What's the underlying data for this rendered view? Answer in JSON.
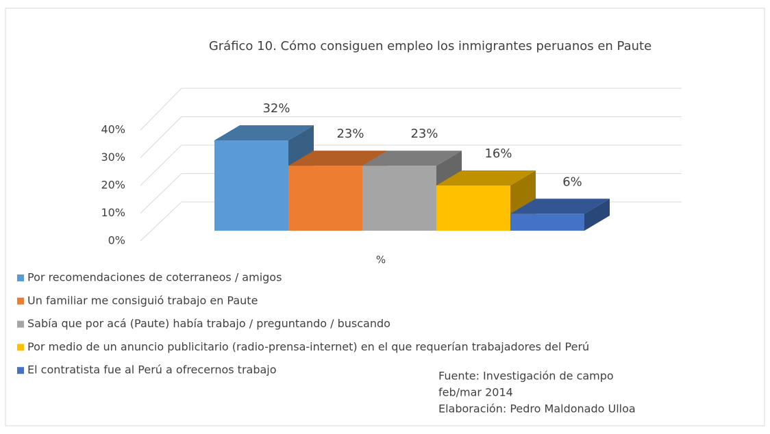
{
  "chart_data": {
    "type": "bar3d",
    "title": "Gráfico 10. Cómo consiguen empleo los inmigrantes peruanos en Paute",
    "categories": [
      "%"
    ],
    "series": [
      {
        "name": "Por recomendaciones de coterraneos / amigos",
        "color": "#5b9bd5",
        "values": [
          32
        ],
        "value_labels": [
          "32%"
        ]
      },
      {
        "name": "Un familiar me consiguió trabajo en Paute",
        "color": "#ed7d31",
        "values": [
          23
        ],
        "value_labels": [
          "23%"
        ]
      },
      {
        "name": "Sabía que por acá (Paute) había trabajo / preguntando / buscando",
        "color": "#a5a5a5",
        "values": [
          23
        ],
        "value_labels": [
          "23%"
        ]
      },
      {
        "name": "Por medio de un anuncio publicitario (radio-prensa-internet) en el que requerían trabajadores del Perú",
        "color": "#ffc000",
        "values": [
          16
        ],
        "value_labels": [
          "16%"
        ]
      },
      {
        "name": "El contratista fue al Perú a ofrecernos trabajo",
        "color": "#4472c4",
        "values": [
          6
        ],
        "value_labels": [
          "6%"
        ]
      }
    ],
    "ylim": [
      0,
      40
    ],
    "yticks": [
      {
        "value": 0,
        "label": "0%"
      },
      {
        "value": 10,
        "label": "10%"
      },
      {
        "value": 20,
        "label": "20%"
      },
      {
        "value": 30,
        "label": "30%"
      },
      {
        "value": 40,
        "label": "40%"
      }
    ],
    "grid": true,
    "legend": "bottom-left",
    "source": [
      "Fuente: Investigación de campo",
      "feb/mar 2014",
      "Elaboración: Pedro Maldonado Ulloa"
    ]
  }
}
